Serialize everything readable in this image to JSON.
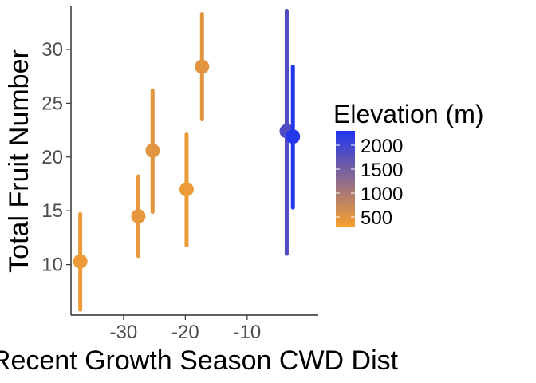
{
  "chart_data": {
    "type": "scatter",
    "xlabel": "Recent Growth Season CWD Dist",
    "ylabel": "Total Fruit Number",
    "xlim": [
      -38.5,
      1.5
    ],
    "ylim": [
      5.3,
      34.0
    ],
    "x_ticks": [
      -30,
      -20,
      -10
    ],
    "y_ticks": [
      10,
      15,
      20,
      25,
      30
    ],
    "grid": false,
    "legend": {
      "title": "Elevation (m)",
      "placement": "right",
      "color_scale": {
        "low": "#F7A02E",
        "high": "#1F34F0",
        "min": 300,
        "max": 2300
      },
      "breaks": [
        2000,
        1500,
        1000,
        500
      ]
    },
    "points": [
      {
        "x": -37.0,
        "y": 10.3,
        "ymin": 5.8,
        "ymax": 14.7,
        "elevation": 400
      },
      {
        "x": -27.6,
        "y": 14.5,
        "ymin": 10.8,
        "ymax": 18.2,
        "elevation": 450
      },
      {
        "x": -25.3,
        "y": 20.6,
        "ymin": 14.9,
        "ymax": 26.2,
        "elevation": 500
      },
      {
        "x": -19.8,
        "y": 17.0,
        "ymin": 11.8,
        "ymax": 22.1,
        "elevation": 400
      },
      {
        "x": -17.3,
        "y": 28.4,
        "ymin": 23.5,
        "ymax": 33.3,
        "elevation": 500
      },
      {
        "x": -3.6,
        "y": 22.4,
        "ymin": 11.0,
        "ymax": 33.6,
        "elevation": 1850
      },
      {
        "x": -2.6,
        "y": 21.9,
        "ymin": 15.3,
        "ymax": 28.4,
        "elevation": 2250
      }
    ]
  }
}
